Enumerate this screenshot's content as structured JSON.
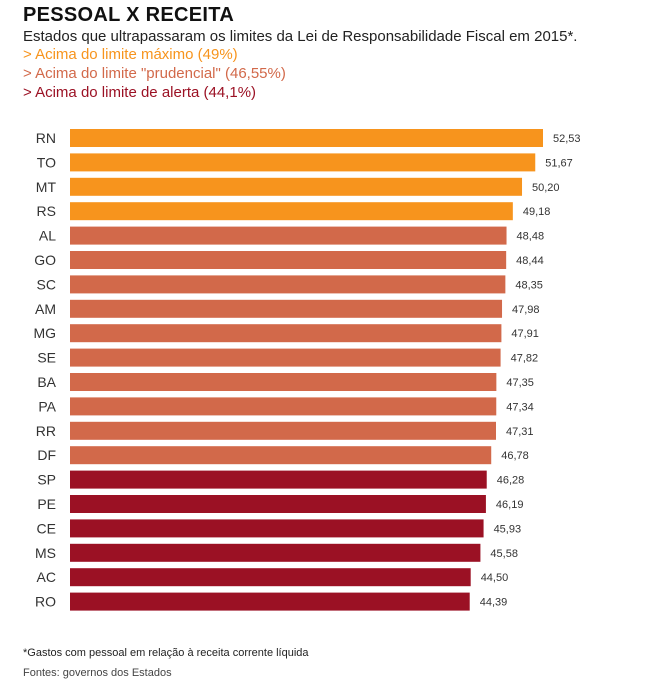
{
  "title": "PESSOAL X RECEITA",
  "subtitle": "Estados que ultrapassaram os limites da Lei de Responsabilidade Fiscal em 2015*.",
  "legend": [
    {
      "text": "> Acima do limite máximo (49%)",
      "color": "#F7941D"
    },
    {
      "text": "> Acima do limite \"prudencial\" (46,55%)",
      "color": "#D2694A"
    },
    {
      "text": "> Acima do limite de alerta (44,1%)",
      "color": "#9B1124"
    }
  ],
  "footnote": "*Gastos com pessoal em relação à receita corrente líquida",
  "source": "Fontes: governos dos Estados",
  "chart_data": {
    "type": "bar",
    "orientation": "horizontal",
    "categories": [
      "RN",
      "TO",
      "MT",
      "RS",
      "AL",
      "GO",
      "SC",
      "AM",
      "MG",
      "SE",
      "BA",
      "PA",
      "RR",
      "DF",
      "SP",
      "PE",
      "CE",
      "MS",
      "AC",
      "RO"
    ],
    "values": [
      52.53,
      51.67,
      50.2,
      49.18,
      48.48,
      48.44,
      48.35,
      47.98,
      47.91,
      47.82,
      47.35,
      47.34,
      47.31,
      46.78,
      46.28,
      46.19,
      45.93,
      45.58,
      44.5,
      44.39
    ],
    "value_labels": [
      "52,53",
      "51,67",
      "50,20",
      "49,18",
      "48,48",
      "48,44",
      "48,35",
      "47,98",
      "47,91",
      "47,82",
      "47,35",
      "47,34",
      "47,31",
      "46,78",
      "46,28",
      "46,19",
      "45,93",
      "45,58",
      "44,50",
      "44,39"
    ],
    "thresholds": [
      {
        "above": 49,
        "color": "#F7941D"
      },
      {
        "above": 46.55,
        "color": "#D2694A"
      },
      {
        "above": 44.1,
        "color": "#9B1124"
      }
    ],
    "grid": false
  }
}
